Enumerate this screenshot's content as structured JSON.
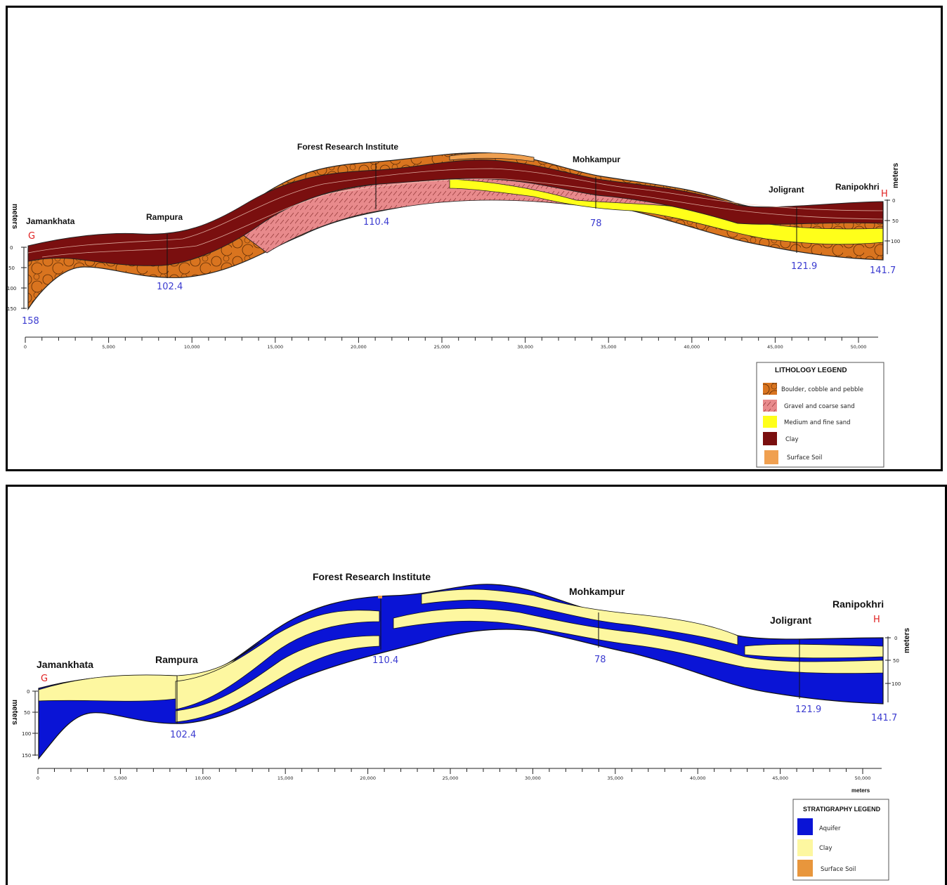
{
  "top": {
    "places": [
      "Jamankhata",
      "Rampura",
      "Forest Research Institute",
      "Mohkampur",
      "Joligrant",
      "Ranipokhri"
    ],
    "depths": [
      "158",
      "102.4",
      "110.4",
      "78",
      "121.9",
      "141.7"
    ],
    "end_left": "G",
    "end_right": "H",
    "vertical_axis_label": "meters",
    "left_axis_ticks": [
      "0",
      "50",
      "100",
      "150"
    ],
    "right_axis_ticks": [
      "0",
      "50",
      "100"
    ],
    "x_axis_ticks": [
      "0",
      "5,000",
      "10,000",
      "15,000",
      "20,000",
      "25,000",
      "30,000",
      "35,000",
      "40,000",
      "45,000",
      "50,000"
    ],
    "legend": {
      "title": "LITHOLOGY LEGEND",
      "items": [
        {
          "label": "Boulder, cobble and pebble",
          "color": "#d2691e"
        },
        {
          "label": "Gravel and coarse sand",
          "color": "#e8898c"
        },
        {
          "label": "Medium and fine  sand",
          "color": "#ffff1a"
        },
        {
          "label": "Clay",
          "color": "#7a0f0f"
        },
        {
          "label": "Surface  Soil",
          "color": "#f0a050"
        }
      ]
    }
  },
  "bottom": {
    "places": [
      "Jamankhata",
      "Rampura",
      "Forest Research Institute",
      "Mohkampur",
      "Joligrant",
      "Ranipokhri"
    ],
    "depths": [
      "102.4",
      "110.4",
      "78",
      "121.9",
      "141.7"
    ],
    "end_left": "G",
    "end_right": "H",
    "vertical_axis_label": "meters",
    "left_axis_ticks": [
      "0",
      "50",
      "100",
      "150"
    ],
    "right_axis_ticks": [
      "0",
      "50",
      "100"
    ],
    "x_axis_ticks": [
      "0",
      "5,000",
      "10,000",
      "15,000",
      "20,000",
      "25,000",
      "30,000",
      "35,000",
      "40,000",
      "45,000",
      "50,000"
    ],
    "x_axis_label": "meters",
    "legend": {
      "title": "STRATIGRAPHY LEGEND",
      "items": [
        {
          "label": "Aquifer",
          "color": "#0a14d6"
        },
        {
          "label": "Clay",
          "color": "#fdf7a0"
        },
        {
          "label": "Surface  Soil",
          "color": "#e8963c"
        }
      ]
    }
  }
}
